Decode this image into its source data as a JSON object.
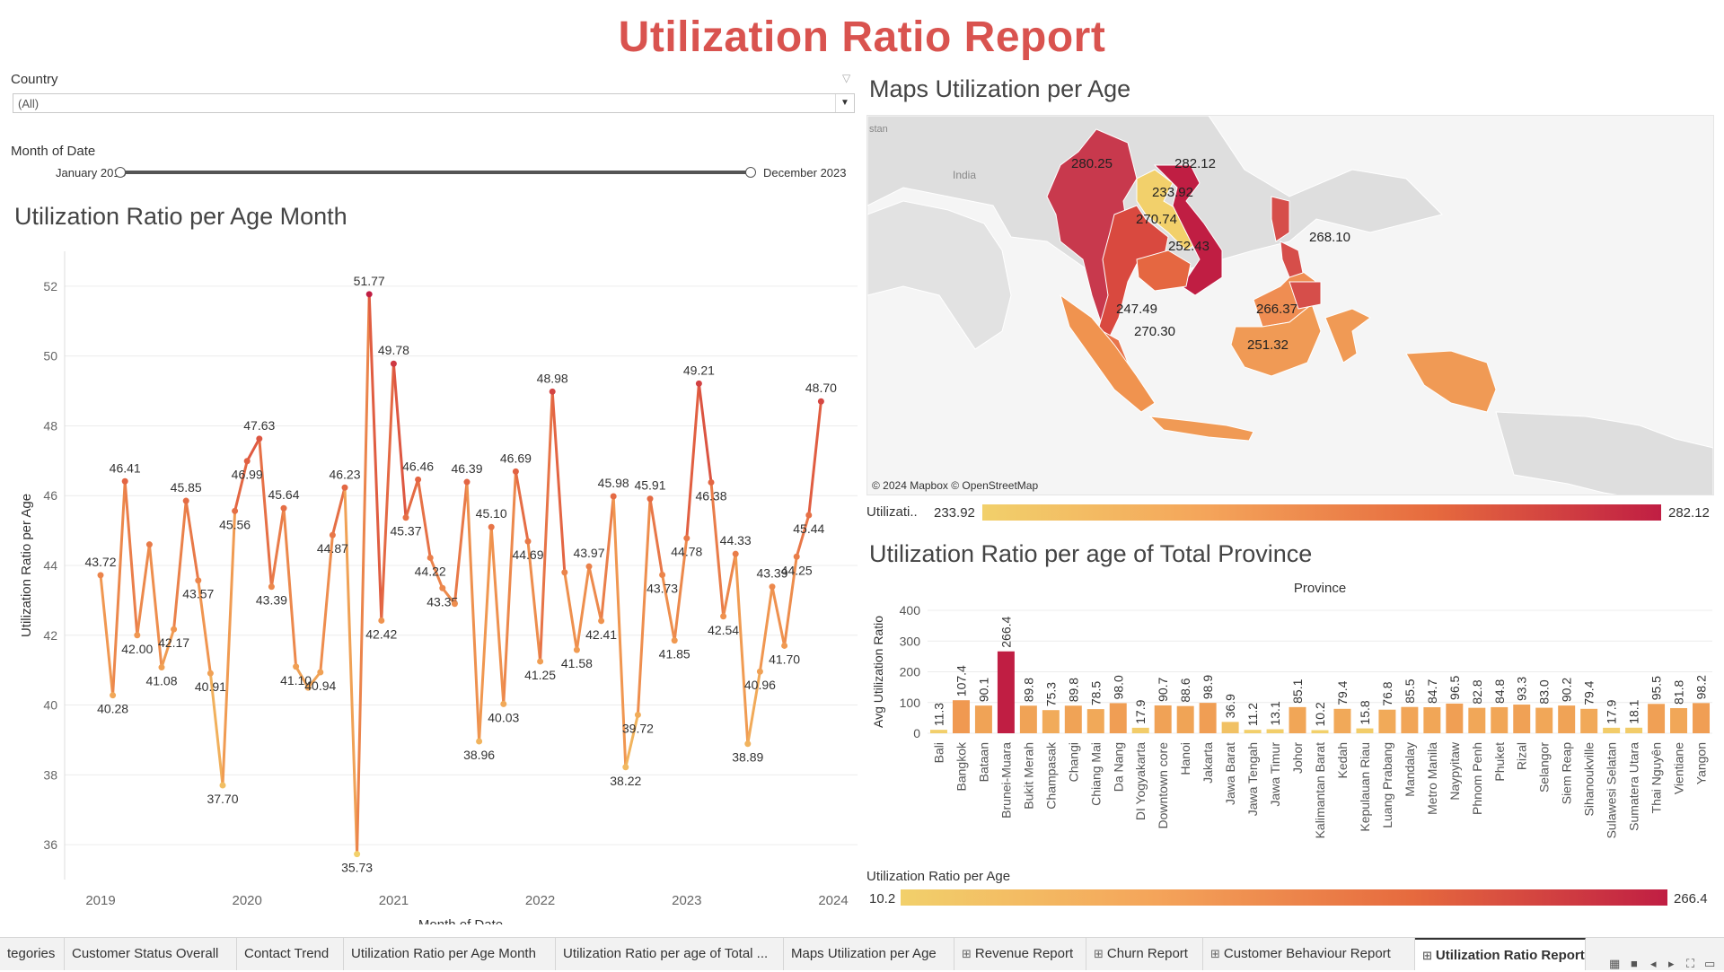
{
  "title": "Utilization Ratio Report",
  "filters": {
    "country_label": "Country",
    "country_value": "(All)",
    "month_label": "Month of Date",
    "month_start": "January 2019",
    "month_end": "December 2023"
  },
  "line_section_title": "Utilization Ratio per Age Month",
  "map_section_title": "Maps Utilization per Age",
  "bar_section_title": "Utilization Ratio per age of Total Province",
  "map": {
    "attribution": "© 2024 Mapbox © OpenStreetMap",
    "label_india": "India",
    "label_stan": "stan",
    "legend_label": "Utilizati..",
    "legend_min": "233.92",
    "legend_max": "282.12",
    "values": [
      "280.25",
      "282.12",
      "233.92",
      "270.74",
      "252.43",
      "268.10",
      "247.49",
      "270.30",
      "266.37",
      "251.32"
    ]
  },
  "bar_legend": {
    "title": "Utilization Ratio per Age",
    "min": "10.2",
    "max": "266.4"
  },
  "colors": {
    "low": "#f2d06b",
    "mid": "#f0913f",
    "high": "#c01e43",
    "title": "#d9534f"
  },
  "chart_data": [
    {
      "type": "line",
      "title": "Utilization Ratio per Age Month",
      "xlabel": "Month of Date",
      "ylabel": "Utilization Ratio per Age",
      "ylim": [
        35,
        53
      ],
      "yticks": [
        36,
        38,
        40,
        42,
        44,
        46,
        48,
        50,
        52
      ],
      "xticks": [
        "2019",
        "2020",
        "2021",
        "2022",
        "2023",
        "2024"
      ],
      "grid": true,
      "x_start": "2019-01",
      "x_end": "2023-12",
      "values": [
        43.72,
        40.28,
        46.41,
        42.0,
        44.6,
        41.08,
        42.17,
        45.85,
        43.57,
        40.91,
        37.7,
        45.56,
        46.99,
        47.63,
        43.39,
        45.64,
        41.1,
        40.5,
        40.94,
        44.87,
        46.23,
        35.73,
        51.77,
        42.42,
        49.78,
        45.37,
        46.46,
        44.22,
        43.35,
        42.9,
        46.39,
        38.96,
        45.1,
        40.03,
        46.69,
        44.69,
        41.25,
        48.98,
        43.8,
        41.58,
        43.97,
        42.41,
        45.98,
        38.22,
        39.72,
        45.91,
        43.73,
        41.85,
        44.78,
        49.21,
        46.38,
        42.54,
        44.33,
        38.89,
        40.96,
        43.39,
        41.7,
        44.25,
        45.44,
        48.7
      ],
      "point_labels": [
        "43.72",
        "40.28",
        "46.41",
        "42.00",
        "",
        "41.08",
        "42.17",
        "45.85",
        "43.57",
        "40.91",
        "37.70",
        "45.56",
        "46.99",
        "47.63",
        "43.39",
        "45.64",
        "41.10",
        "",
        "40.94",
        "44.87",
        "46.23",
        "35.73",
        "51.77",
        "42.42",
        "49.78",
        "45.37",
        "46.46",
        "44.22",
        "43.35",
        "",
        "46.39",
        "38.96",
        "45.10",
        "40.03",
        "46.69",
        "44.69",
        "41.25",
        "48.98",
        "",
        "41.58",
        "43.97",
        "42.41",
        "45.98",
        "38.22",
        "39.72",
        "45.91",
        "43.73",
        "41.85",
        "44.78",
        "49.21",
        "46.38",
        "42.54",
        "44.33",
        "38.89",
        "40.96",
        "43.39",
        "41.70",
        "44.25",
        "45.44",
        "48.70"
      ]
    },
    {
      "type": "bar",
      "title": "Province",
      "ylabel": "Avg Utilization Ratio",
      "ylim": [
        0,
        400
      ],
      "yticks": [
        0,
        100,
        200,
        300,
        400
      ],
      "categories": [
        "Bali",
        "Bangkok",
        "Bataan",
        "Brunei-Muara",
        "Bukit Merah",
        "Champasak",
        "Changi",
        "Chiang Mai",
        "Da Nang",
        "DI Yogyakarta",
        "Downtown core",
        "Hanoi",
        "Jakarta",
        "Jawa Barat",
        "Jawa Tengah",
        "Jawa Timur",
        "Johor",
        "Kalimantan Barat",
        "Kedah",
        "Kepulauan Riau",
        "Luang Prabang",
        "Mandalay",
        "Metro Manila",
        "Naypyitaw",
        "Phnom Penh",
        "Phuket",
        "Rizal",
        "Selangor",
        "Siem Reap",
        "Sihanoukville",
        "Sulawesi Selatan",
        "Sumatera Utara",
        "Thai Nguyên",
        "Vientiane",
        "Yangon"
      ],
      "values": [
        11.3,
        107.4,
        90.1,
        266.4,
        89.8,
        75.3,
        89.8,
        78.5,
        98.0,
        17.9,
        90.7,
        88.6,
        98.9,
        36.9,
        11.2,
        13.1,
        85.1,
        10.2,
        79.4,
        15.8,
        76.8,
        85.5,
        84.7,
        96.5,
        82.8,
        84.8,
        93.3,
        83.0,
        90.2,
        79.4,
        17.9,
        18.1,
        95.5,
        81.8,
        98.2
      ]
    }
  ],
  "tabs": [
    {
      "label": "tegories",
      "icon": ""
    },
    {
      "label": "Customer Status Overall",
      "icon": ""
    },
    {
      "label": "Contact Trend",
      "icon": ""
    },
    {
      "label": "Utilization Ratio per Age Month",
      "icon": ""
    },
    {
      "label": "Utilization Ratio per age of Total ...",
      "icon": ""
    },
    {
      "label": "Maps Utilization per Age",
      "icon": ""
    },
    {
      "label": "Revenue Report",
      "icon": "grid-icon"
    },
    {
      "label": "Churn Report",
      "icon": "grid-icon"
    },
    {
      "label": "Customer Behaviour Report",
      "icon": "grid-icon"
    },
    {
      "label": "Utilization Ratio Report",
      "icon": "grid-icon"
    }
  ],
  "active_tab": "Utilization Ratio Report"
}
